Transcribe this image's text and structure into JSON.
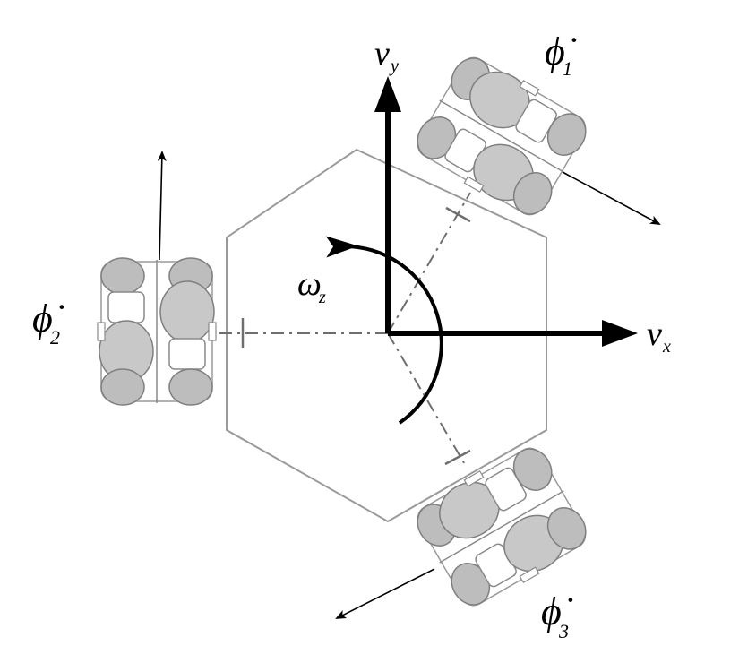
{
  "labels": {
    "phi_symbol": "ϕ̇",
    "wheel1_sub": "1",
    "wheel2_sub": "2",
    "wheel3_sub": "3",
    "vx_symbol": "v",
    "vx_sub": "x",
    "vy_symbol": "v",
    "vy_sub": "y",
    "omega_symbol": "ω",
    "omega_sub": "z"
  }
}
